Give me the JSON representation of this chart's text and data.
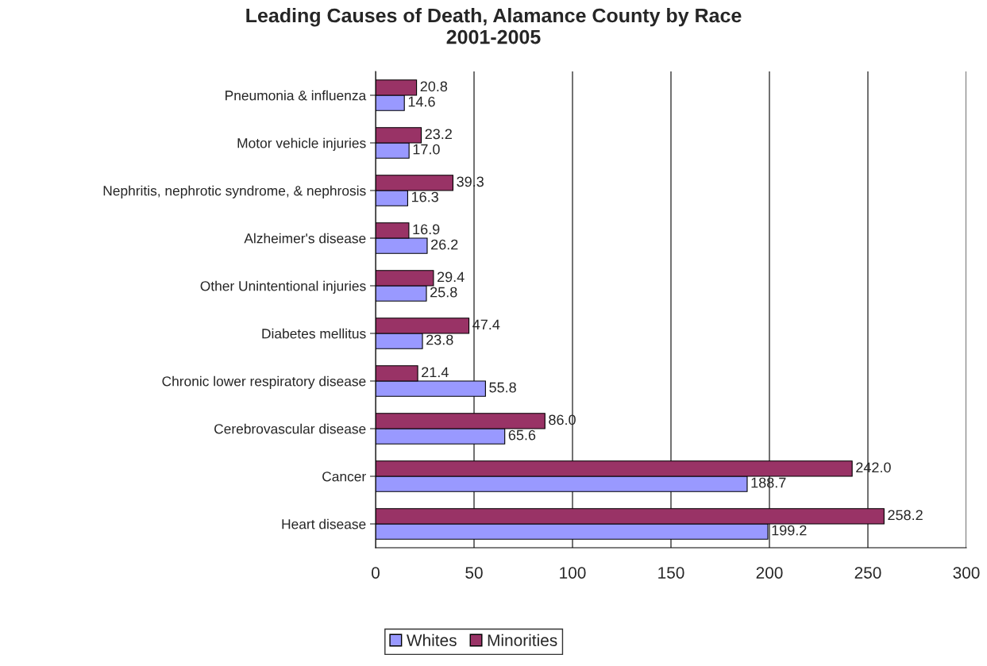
{
  "chart_data": {
    "type": "bar",
    "orientation": "horizontal",
    "title": "Leading Causes of Death, Alamance County by Race\n2001-2005",
    "categories": [
      "Pneumonia & influenza",
      "Motor vehicle injuries",
      "Nephritis, nephrotic syndrome, & nephrosis",
      "Alzheimer's disease",
      "Other Unintentional injuries",
      "Diabetes mellitus",
      "Chronic lower respiratory disease",
      "Cerebrovascular disease",
      "Cancer",
      "Heart disease"
    ],
    "series": [
      {
        "name": "Whites",
        "color": "#9999ff",
        "values": [
          14.6,
          17.0,
          16.3,
          26.2,
          25.8,
          23.8,
          55.8,
          65.6,
          188.7,
          199.2
        ],
        "value_labels": [
          "14.6",
          "17.0",
          "16.3",
          "26.2",
          "25.8",
          "23.8",
          "55.8",
          "65.6",
          "188.7",
          "199.2"
        ]
      },
      {
        "name": "Minorities",
        "color": "#993366",
        "values": [
          20.8,
          23.2,
          39.3,
          16.9,
          29.4,
          47.4,
          21.4,
          86.0,
          242.0,
          258.2
        ],
        "value_labels": [
          "20.8",
          "23.2",
          "39.3",
          "16.9",
          "29.4",
          "47.4",
          "21.4",
          "86.0",
          "242.0",
          "258.2"
        ]
      }
    ],
    "xlim": [
      0,
      300
    ],
    "xticks": [
      0,
      50,
      100,
      150,
      200,
      250,
      300
    ],
    "grid": "x",
    "legend": "bottom"
  }
}
